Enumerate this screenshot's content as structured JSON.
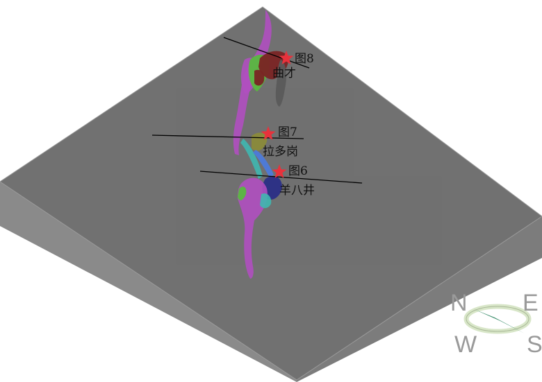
{
  "figure": {
    "profiles": [
      {
        "fig_label": "图8",
        "place": "曲才"
      },
      {
        "fig_label": "图7",
        "place": "拉多岗"
      },
      {
        "fig_label": "图6",
        "place": "羊八井"
      }
    ],
    "compass": {
      "north": "N",
      "east": "E",
      "west": "W",
      "south": "S"
    }
  },
  "colors": {
    "terrain_top": "#a7a7a7",
    "side_left": "#8f8f8f",
    "side_right": "#7c7c7c",
    "marker": "#e8323c",
    "purple_body": "#b04fc0",
    "green_body": "#58b83f",
    "darkred_body": "#7a2424",
    "navy_body": "#2a2e86",
    "gray_body": "#5a5a5a",
    "compass_needle": "#3e8f6e",
    "compass_ring": "#d8e6c8"
  }
}
